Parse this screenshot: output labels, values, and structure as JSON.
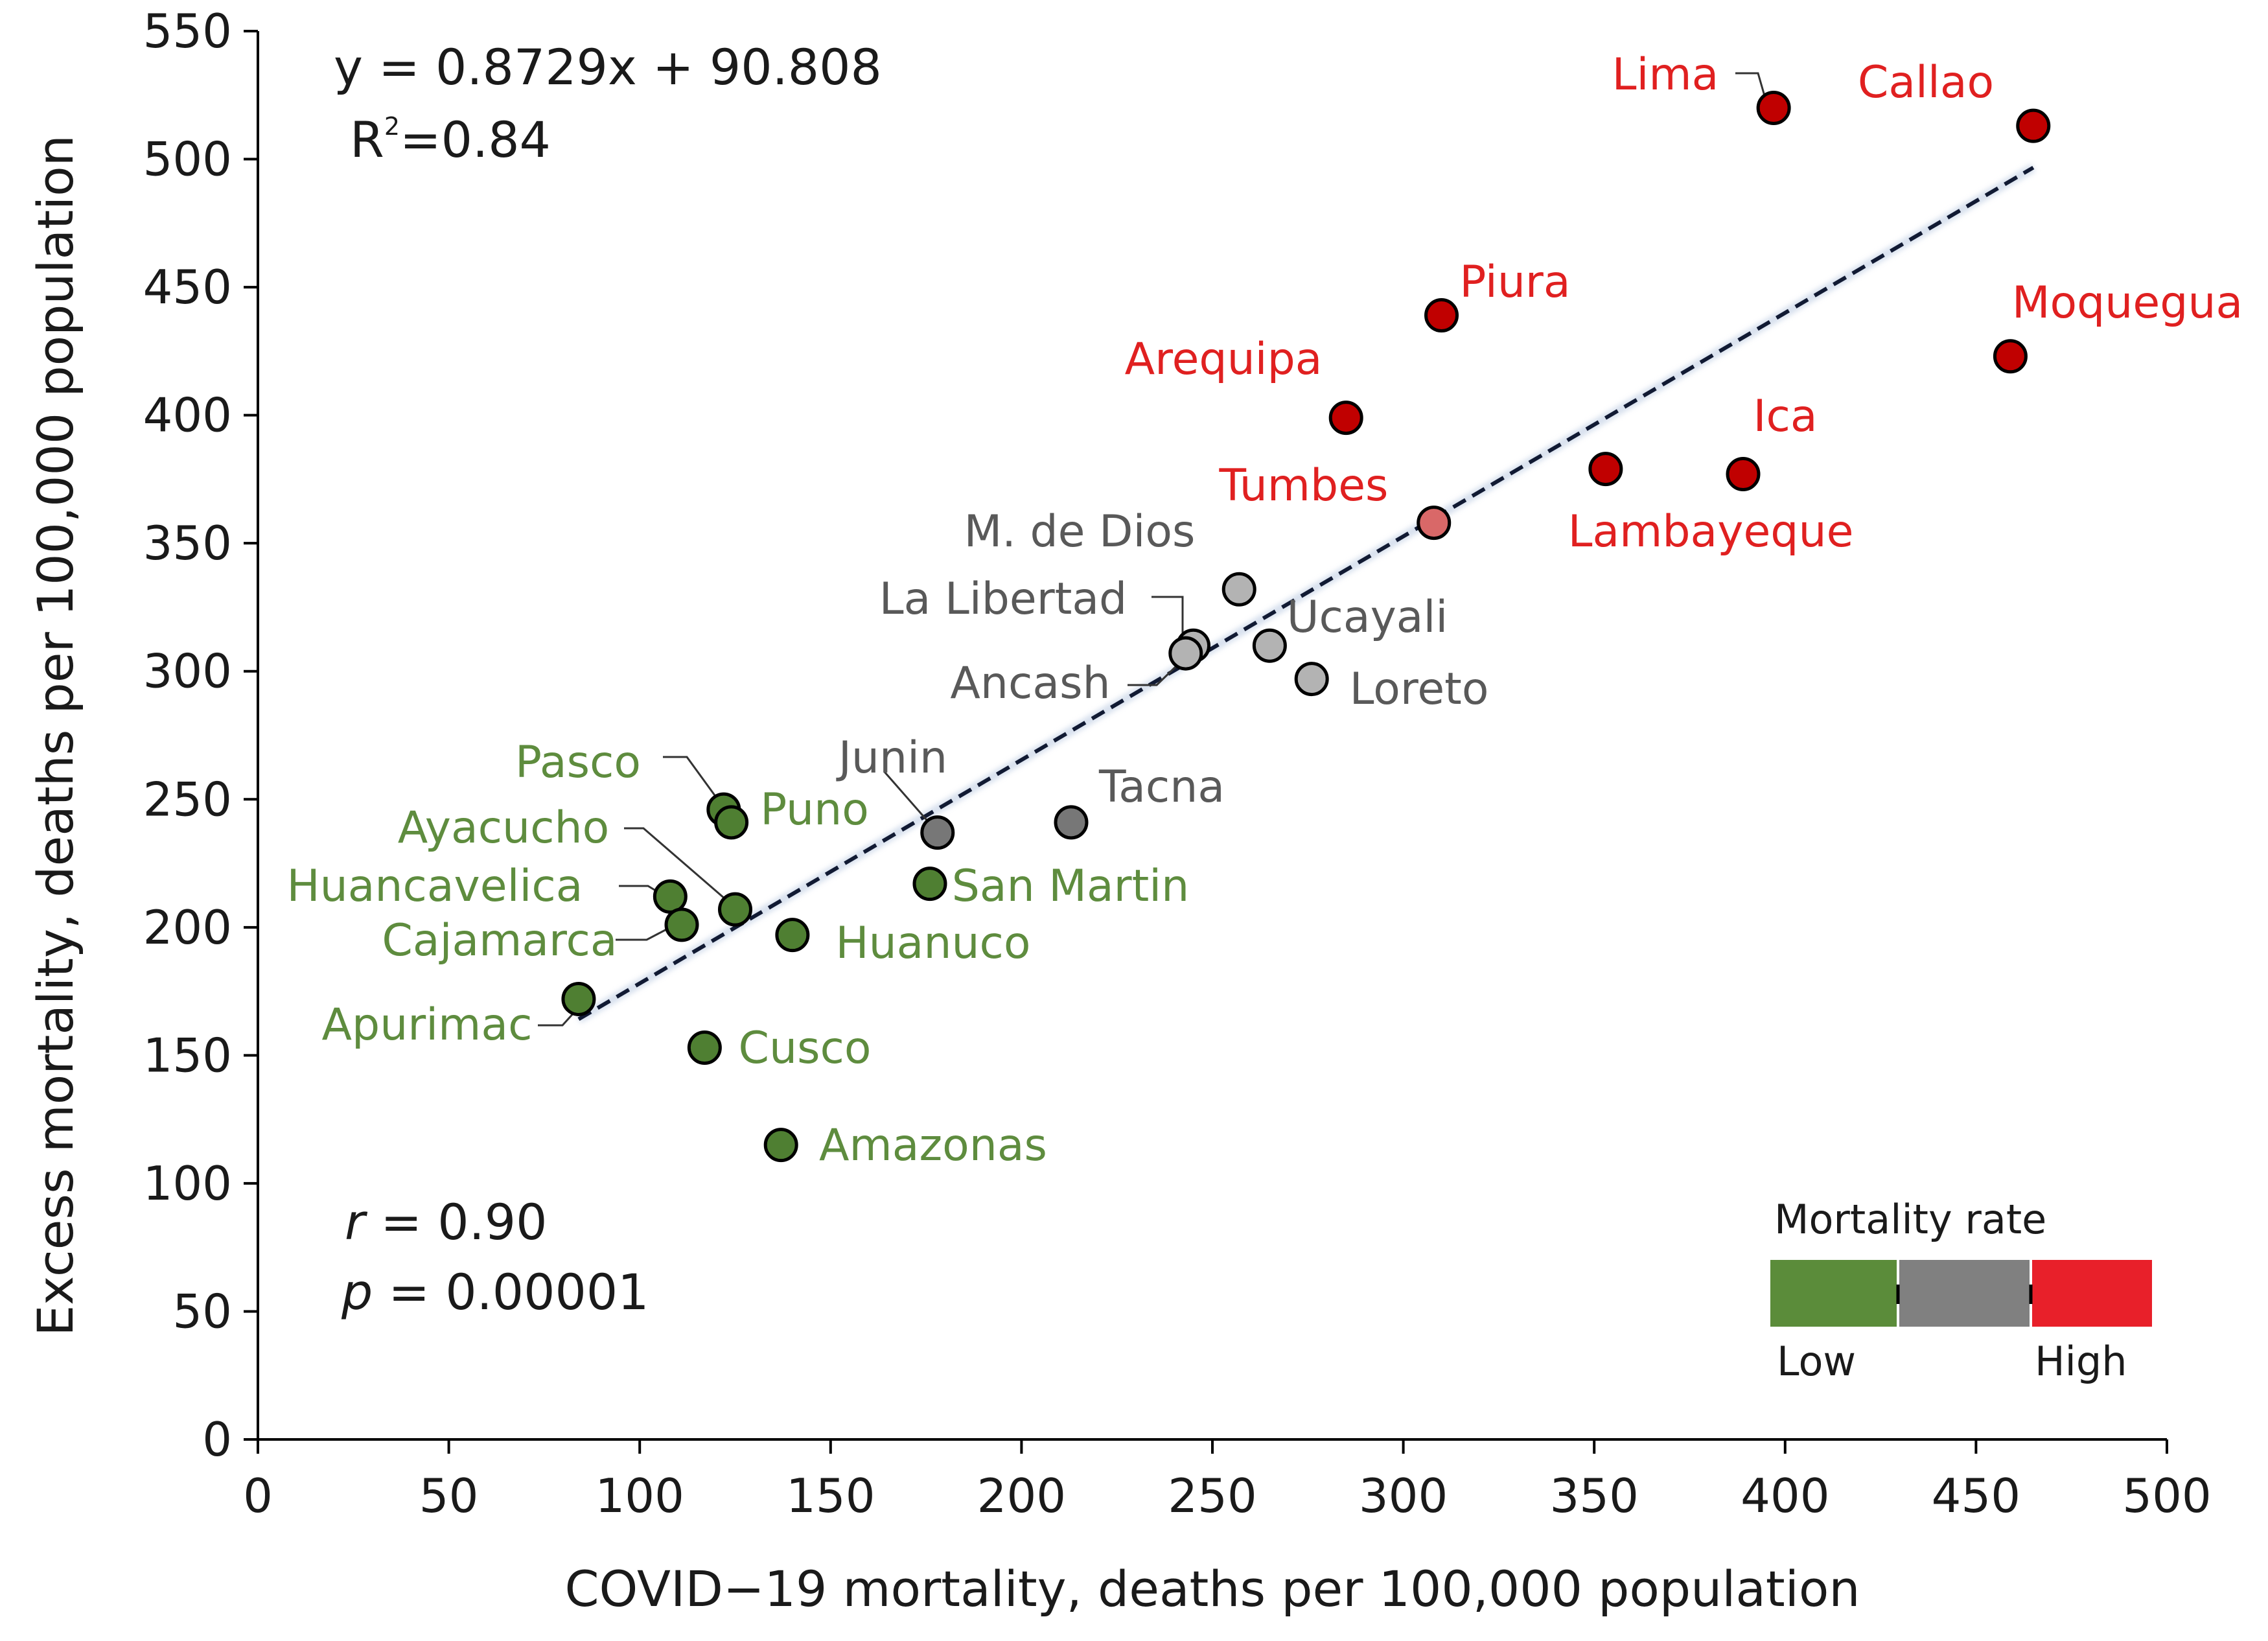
{
  "chart_data": {
    "type": "scatter",
    "xlabel": "COVID−19 mortality, deaths per 100,000 population",
    "ylabel": "Excess mortality, deaths per 100,000 population",
    "xlim": [
      0,
      500
    ],
    "ylim": [
      0,
      550
    ],
    "x_ticks": [
      "0",
      "50",
      "100",
      "150",
      "200",
      "250",
      "300",
      "350",
      "400",
      "450",
      "500"
    ],
    "y_ticks": [
      "0",
      "50",
      "100",
      "150",
      "200",
      "250",
      "300",
      "350",
      "400",
      "450",
      "500",
      "550"
    ],
    "grid": false,
    "regression": {
      "equation": "y = 0.8729x + 90.808",
      "slope": 0.8729,
      "intercept": 90.808,
      "x_range": [
        84,
        465
      ],
      "r2_prefix": "R",
      "r2_exp": "2",
      "r2_value": "=0.84"
    },
    "stats": {
      "r_symbol": "r",
      "r_value": " = 0.90",
      "p_symbol": "p",
      "p_value": " = 0.00001"
    },
    "legend": {
      "title": "Mortality rate",
      "low": "Low",
      "high": "High",
      "colors": [
        "#5b8c3a",
        "#808080",
        "#e8202a"
      ],
      "position": "bottom-right"
    },
    "category_colors": {
      "low": "#4f7f32",
      "mid": "#b3b3b3",
      "high": "#c00000",
      "low_text": "#5e8c3e",
      "mid_text": "#595959",
      "high_text": "#e02020"
    },
    "points": [
      {
        "name": "Lima",
        "x": 397,
        "y": 520,
        "category": "high"
      },
      {
        "name": "Callao",
        "x": 465,
        "y": 513,
        "category": "high"
      },
      {
        "name": "Piura",
        "x": 310,
        "y": 439,
        "category": "high"
      },
      {
        "name": "Moquegua",
        "x": 459,
        "y": 423,
        "category": "high"
      },
      {
        "name": "Arequipa",
        "x": 285,
        "y": 399,
        "category": "high"
      },
      {
        "name": "Ica",
        "x": 389,
        "y": 377,
        "category": "high"
      },
      {
        "name": "Lambayeque",
        "x": 353,
        "y": 379,
        "category": "high"
      },
      {
        "name": "Tumbes",
        "x": 308,
        "y": 358,
        "category": "high"
      },
      {
        "name": "M. de Dios",
        "x": 257,
        "y": 332,
        "category": "mid"
      },
      {
        "name": "La Libertad",
        "x": 245,
        "y": 310,
        "category": "mid"
      },
      {
        "name": "Ancash",
        "x": 243,
        "y": 307,
        "category": "mid"
      },
      {
        "name": "Ucayali",
        "x": 265,
        "y": 310,
        "category": "mid"
      },
      {
        "name": "Loreto",
        "x": 276,
        "y": 297,
        "category": "mid"
      },
      {
        "name": "Tacna",
        "x": 213,
        "y": 241,
        "category": "dark"
      },
      {
        "name": "Junin",
        "x": 178,
        "y": 237,
        "category": "dark"
      },
      {
        "name": "Pasco",
        "x": 122,
        "y": 246,
        "category": "low"
      },
      {
        "name": "Puno",
        "x": 124,
        "y": 241,
        "category": "low"
      },
      {
        "name": "Ayacucho",
        "x": 125,
        "y": 207,
        "category": "low"
      },
      {
        "name": "Huancavelica",
        "x": 108,
        "y": 212,
        "category": "low"
      },
      {
        "name": "Cajamarca",
        "x": 111,
        "y": 201,
        "category": "low"
      },
      {
        "name": "San Martin",
        "x": 176,
        "y": 217,
        "category": "low"
      },
      {
        "name": "Huanuco",
        "x": 140,
        "y": 197,
        "category": "low"
      },
      {
        "name": "Apurimac",
        "x": 84,
        "y": 172,
        "category": "low"
      },
      {
        "name": "Cusco",
        "x": 117,
        "y": 153,
        "category": "low"
      },
      {
        "name": "Amazonas",
        "x": 137,
        "y": 115,
        "category": "low"
      }
    ]
  }
}
